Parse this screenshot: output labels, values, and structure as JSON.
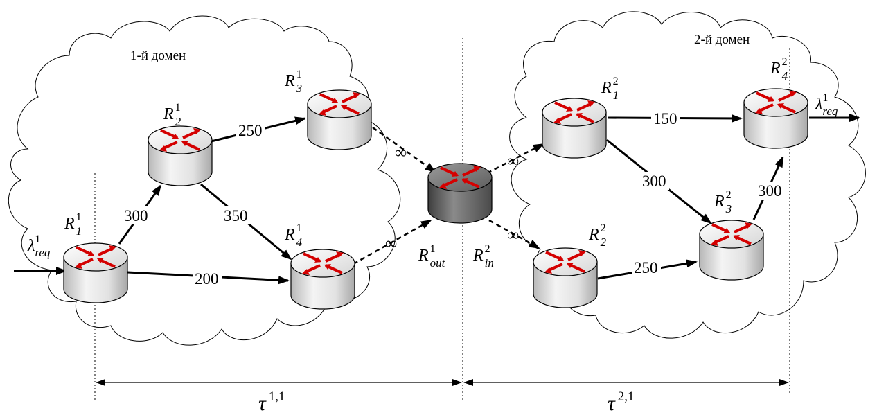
{
  "domains": [
    {
      "id": "d1",
      "label": "1-й домен"
    },
    {
      "id": "d2",
      "label": "2-й домен"
    }
  ],
  "routers": [
    {
      "id": "r11",
      "base": "R",
      "sup": "1",
      "sub": "1",
      "kind": "normal"
    },
    {
      "id": "r12",
      "base": "R",
      "sup": "1",
      "sub": "2",
      "kind": "normal"
    },
    {
      "id": "r13",
      "base": "R",
      "sup": "1",
      "sub": "3",
      "kind": "normal"
    },
    {
      "id": "r14",
      "base": "R",
      "sup": "1",
      "sub": "4",
      "kind": "normal"
    },
    {
      "id": "rout",
      "base": "R",
      "sup": "1",
      "sub": "out",
      "kind": "border"
    },
    {
      "id": "rin",
      "base": "R",
      "sup": "2",
      "sub": "in",
      "kind": "label-only"
    },
    {
      "id": "r21",
      "base": "R",
      "sup": "2",
      "sub": "1",
      "kind": "normal"
    },
    {
      "id": "r22",
      "base": "R",
      "sup": "2",
      "sub": "2",
      "kind": "normal"
    },
    {
      "id": "r23",
      "base": "R",
      "sup": "2",
      "sub": "3",
      "kind": "normal"
    },
    {
      "id": "r24",
      "base": "R",
      "sup": "2",
      "sub": "4",
      "kind": "normal"
    }
  ],
  "links": [
    {
      "from": "r11",
      "to": "r12",
      "weight": "300",
      "style": "solid"
    },
    {
      "from": "r11",
      "to": "r14",
      "weight": "200",
      "style": "solid"
    },
    {
      "from": "r12",
      "to": "r13",
      "weight": "250",
      "style": "solid"
    },
    {
      "from": "r12",
      "to": "r14",
      "weight": "350",
      "style": "solid"
    },
    {
      "from": "r13",
      "to": "rout",
      "weight": "∞",
      "style": "dashed"
    },
    {
      "from": "r14",
      "to": "rout",
      "weight": "∞",
      "style": "dashed"
    },
    {
      "from": "rout",
      "to": "r21",
      "weight": "∞",
      "style": "dashed"
    },
    {
      "from": "rout",
      "to": "r22",
      "weight": "∞",
      "style": "dashed"
    },
    {
      "from": "r21",
      "to": "r24",
      "weight": "150",
      "style": "solid"
    },
    {
      "from": "r21",
      "to": "r23",
      "weight": "300",
      "style": "solid"
    },
    {
      "from": "r22",
      "to": "r23",
      "weight": "250",
      "style": "solid"
    },
    {
      "from": "r23",
      "to": "r24",
      "weight": "300",
      "style": "solid"
    }
  ],
  "flows": {
    "input": {
      "symbol": "λ",
      "sub": "req",
      "sup": "1"
    },
    "output": {
      "symbol": "λ",
      "sub": "req",
      "sup": "1"
    }
  },
  "intervals": [
    {
      "symbol": "τ",
      "sup": "1,1"
    },
    {
      "symbol": "τ",
      "sup": "2,1"
    }
  ]
}
